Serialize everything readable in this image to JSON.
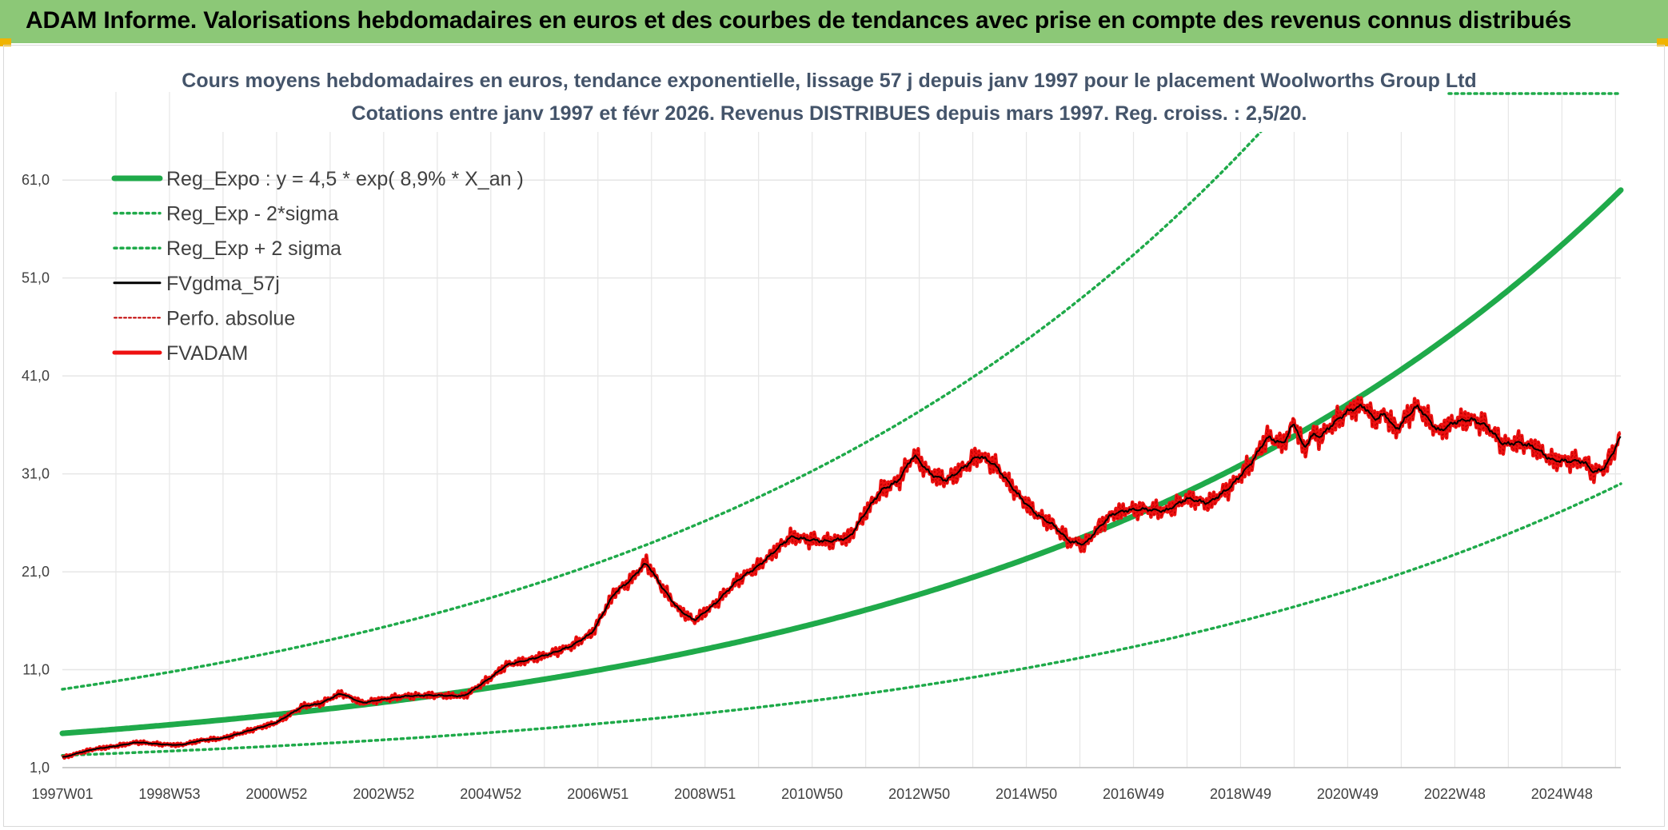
{
  "header": {
    "title": "ADAM Informe. Valorisations hebdomadaires en euros et des courbes de tendances avec prise en compte des revenus connus distribués"
  },
  "colors": {
    "banner": "#8cc877",
    "corner": "#f0b400",
    "trend": "#1faa4a",
    "band": "#1faa4a",
    "fvgdma": "#000000",
    "perfo": "#c00000",
    "fvadam": "#ee1111",
    "grid": "#e6e6e6"
  },
  "chart_data": {
    "type": "line",
    "title": "Cours moyens hebdomadaires en euros, tendance exponentielle, lissage 57 j depuis janv 1997 pour le placement Woolworths Group Ltd",
    "subtitle": "Cotations entre janv 1997 et févr 2026. Revenus DISTRIBUES depuis mars 1997. Reg. croiss. : 2,5/20.",
    "xlabel": "",
    "ylabel": "",
    "xlim": [
      1997.0,
      2026.1
    ],
    "ylim": [
      1.0,
      70.0
    ],
    "grid": true,
    "legend_position": "top-left",
    "y_ticks": [
      "1,0",
      "11,0",
      "21,0",
      "31,0",
      "41,0",
      "51,0",
      "61,0"
    ],
    "y_tick_values": [
      1,
      11,
      21,
      31,
      41,
      51,
      61
    ],
    "x_ticks": [
      "1997W01",
      "1998W53",
      "2000W52",
      "2002W52",
      "2004W52",
      "2006W51",
      "2008W51",
      "2010W50",
      "2012W50",
      "2014W50",
      "2016W49",
      "2018W49",
      "2020W49",
      "2022W48",
      "2024W48"
    ],
    "x_tick_values": [
      1997.0,
      1999.0,
      2001.0,
      2003.0,
      2005.0,
      2007.0,
      2009.0,
      2011.0,
      2013.0,
      2015.0,
      2017.0,
      2019.0,
      2021.0,
      2023.0,
      2025.0
    ],
    "regression": {
      "a": 4.5,
      "rate": 0.089,
      "x0": 1997.0
    },
    "series": [
      {
        "name": "Reg_Expo : y = 4,5 * exp( 8,9% *  X_an )",
        "style": "trend"
      },
      {
        "name": "Reg_Exp - 2*sigma",
        "style": "band-low",
        "factor": 0.5
      },
      {
        "name": "Reg_Exp + 2 sigma",
        "style": "band-high",
        "factor": 2.0
      },
      {
        "name": "FVgdma_57j",
        "style": "smooth"
      },
      {
        "name": "Perfo. absolue",
        "style": "perfo"
      },
      {
        "name": "FVADAM",
        "style": "main",
        "x": [
          1997.0,
          1997.3,
          1997.6,
          1998.0,
          1998.4,
          1998.8,
          1999.2,
          1999.6,
          2000.0,
          2000.5,
          2001.0,
          2001.5,
          2001.8,
          2002.2,
          2002.6,
          2002.9,
          2003.4,
          2003.9,
          2004.5,
          2005.0,
          2005.3,
          2005.7,
          2006.1,
          2006.5,
          2006.9,
          2007.3,
          2007.6,
          2007.9,
          2008.2,
          2008.5,
          2008.8,
          2009.2,
          2009.6,
          2010.0,
          2010.3,
          2010.6,
          2010.9,
          2011.3,
          2011.7,
          2012.0,
          2012.3,
          2012.6,
          2012.9,
          2013.2,
          2013.5,
          2013.8,
          2014.1,
          2014.4,
          2014.7,
          2014.9,
          2015.2,
          2015.5,
          2015.8,
          2016.1,
          2016.3,
          2016.6,
          2016.9,
          2017.2,
          2017.6,
          2018.0,
          2018.4,
          2018.8,
          2019.2,
          2019.5,
          2019.8,
          2020.0,
          2020.2,
          2020.3,
          2020.5,
          2020.7,
          2021.0,
          2021.3,
          2021.5,
          2021.7,
          2021.9,
          2022.1,
          2022.3,
          2022.5,
          2022.7,
          2023.0,
          2023.3,
          2023.6,
          2023.9,
          2024.2,
          2024.5,
          2024.8,
          2025.1,
          2025.4,
          2025.6,
          2025.8,
          2026.0,
          2026.1
        ],
        "y": [
          2.0,
          2.5,
          2.9,
          3.2,
          3.6,
          3.4,
          3.3,
          3.8,
          4.0,
          4.8,
          5.6,
          7.3,
          7.5,
          8.6,
          7.6,
          7.9,
          8.3,
          8.4,
          8.3,
          10.2,
          11.5,
          12.0,
          12.6,
          13.4,
          14.8,
          18.8,
          20.1,
          22.0,
          19.4,
          17.2,
          16.0,
          17.8,
          20.1,
          21.6,
          23.1,
          24.6,
          24.3,
          24.1,
          24.5,
          27.1,
          29.4,
          30.2,
          33.0,
          31.0,
          30.3,
          31.5,
          32.9,
          32.0,
          29.9,
          28.5,
          26.8,
          25.8,
          24.1,
          23.8,
          25.2,
          26.9,
          27.3,
          27.4,
          27.2,
          28.5,
          28.0,
          29.6,
          32.1,
          34.8,
          34.0,
          36.4,
          33.2,
          35.0,
          34.8,
          36.0,
          37.4,
          38.0,
          36.5,
          37.2,
          35.4,
          36.8,
          38.0,
          36.6,
          35.3,
          36.3,
          36.6,
          35.9,
          34.0,
          34.2,
          33.7,
          32.4,
          32.3,
          32.3,
          31.1,
          31.6,
          33.6,
          35.4
        ]
      }
    ]
  }
}
